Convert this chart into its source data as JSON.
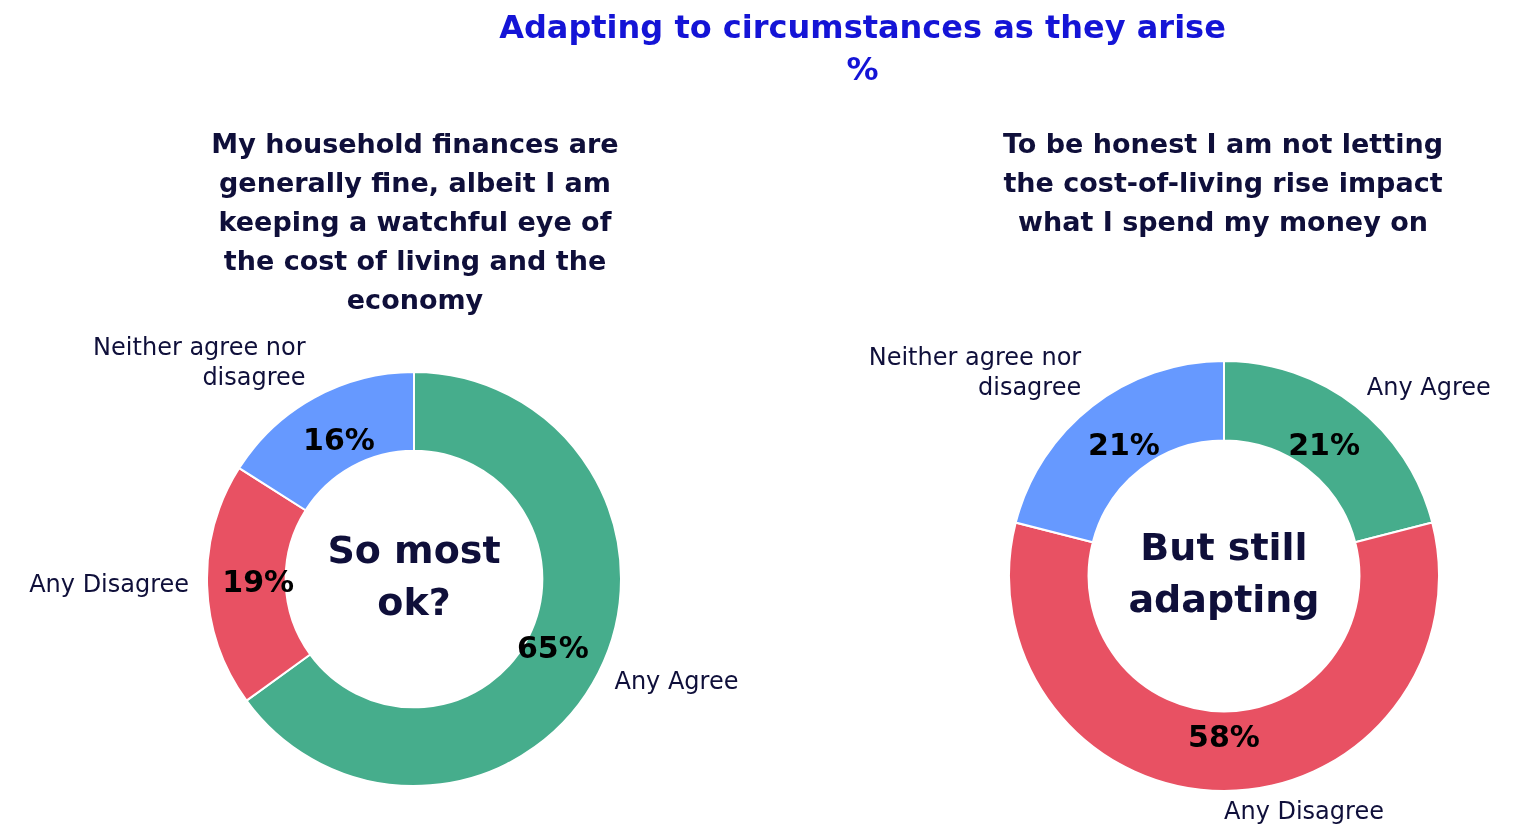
{
  "chart_data": [
    {
      "type": "other",
      "title": "Adapting to circumstances as they arise",
      "subtitle": "%"
    },
    {
      "type": "donut",
      "title": "My household finances are generally fine, albeit I am keeping a watchful eye of the cost of living and the economy",
      "categories": [
        "Any Agree",
        "Any Disagree",
        "Neither agree nor disagree"
      ],
      "values": [
        65,
        19,
        16
      ],
      "colors": [
        "#46ad8c",
        "#e85163",
        "#6699ff"
      ],
      "value_labels": [
        "65%",
        "19%",
        "16%"
      ],
      "annotations": [
        "So most ok?"
      ]
    },
    {
      "type": "donut",
      "title": "To be honest I am not letting the cost-of-living rise impact what I spend my money on",
      "categories": [
        "Any Agree",
        "Any Disagree",
        "Neither agree nor disagree"
      ],
      "values": [
        21,
        58,
        21
      ],
      "colors": [
        "#46ad8c",
        "#e85163",
        "#6699ff"
      ],
      "value_labels": [
        "21%",
        "58%",
        "21%"
      ],
      "annotations": [
        "But still adapting"
      ]
    }
  ]
}
